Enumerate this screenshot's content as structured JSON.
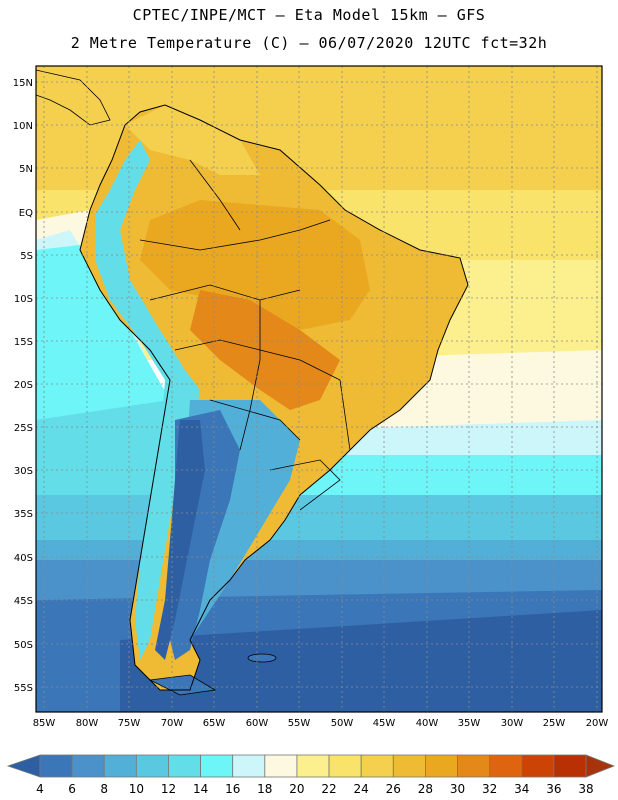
{
  "header": {
    "line1": "CPTEC/INPE/MCT –  Eta Model 15km – GFS",
    "line2": "2 Metre Temperature (C) – 06/07/2020 12UTC fct=32h"
  },
  "map": {
    "lat_labels": [
      "15N",
      "10N",
      "5N",
      "EQ",
      "5S",
      "10S",
      "15S",
      "20S",
      "25S",
      "30S",
      "35S",
      "40S",
      "45S",
      "50S",
      "55S"
    ],
    "lon_labels": [
      "85W",
      "80W",
      "75W",
      "70W",
      "65W",
      "60W",
      "55W",
      "50W",
      "45W",
      "40W",
      "35W",
      "30W",
      "25W",
      "20W"
    ]
  },
  "colorbar": {
    "labels": [
      "4",
      "6",
      "8",
      "10",
      "12",
      "14",
      "16",
      "18",
      "20",
      "22",
      "24",
      "26",
      "28",
      "30",
      "32",
      "34",
      "36",
      "38"
    ],
    "colors": [
      "#2e5fa3",
      "#3b76b8",
      "#4a92c9",
      "#52afd8",
      "#5ac8e0",
      "#63dde8",
      "#6ef5f8",
      "#cdf6fa",
      "#fdf8e0",
      "#fcf08e",
      "#f9e36a",
      "#f5d04e",
      "#efbb35",
      "#eaa821",
      "#e4881a",
      "#de6410",
      "#cc4405",
      "#b83003",
      "#a8320c"
    ]
  }
}
